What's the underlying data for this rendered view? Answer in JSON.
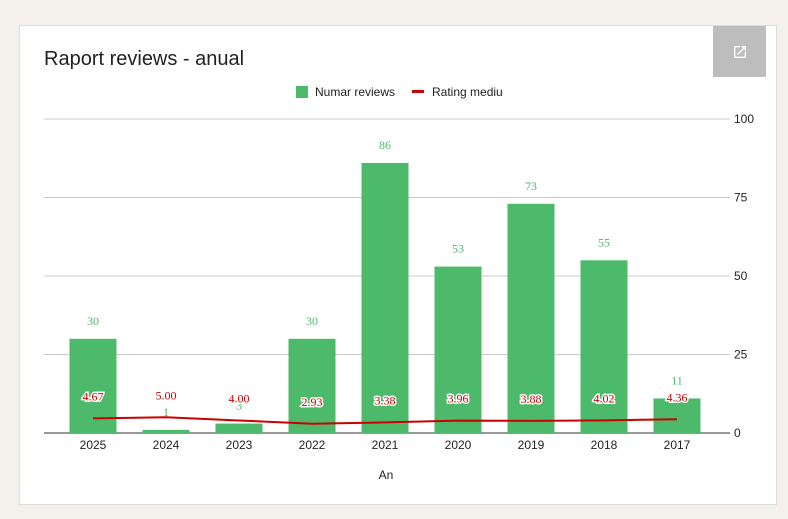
{
  "colors": {
    "bar": "#4cba6a",
    "line": "#cc0000",
    "grid": "#cccccc",
    "axis": "#333333",
    "button": "#bdbdbd"
  },
  "external_link_icon": "open-in-new-icon",
  "chart_data": {
    "type": "bar",
    "title": "Raport reviews - anual",
    "xlabel": "An",
    "ylabel": "",
    "categories": [
      "2025",
      "2024",
      "2023",
      "2022",
      "2021",
      "2020",
      "2019",
      "2018",
      "2017"
    ],
    "series": [
      {
        "name": "Numar reviews",
        "type": "bar",
        "values": [
          30,
          1,
          3,
          30,
          86,
          53,
          73,
          55,
          11
        ],
        "labels": [
          "30",
          "1",
          "3",
          "30",
          "86",
          "53",
          "73",
          "55",
          "11"
        ]
      },
      {
        "name": "Rating mediu",
        "type": "line",
        "values": [
          4.67,
          5.0,
          4.0,
          2.93,
          3.38,
          3.96,
          3.88,
          4.02,
          4.36
        ],
        "labels": [
          "4.67",
          "5.00",
          "4.00",
          "2.93",
          "3.38",
          "3.96",
          "3.88",
          "4.02",
          "4.36"
        ]
      }
    ],
    "ylim": [
      0,
      100
    ],
    "yticks": [
      "0",
      "25",
      "50",
      "75",
      "100"
    ],
    "y_axis_side": "right",
    "grid": true,
    "legend": "top-center"
  }
}
